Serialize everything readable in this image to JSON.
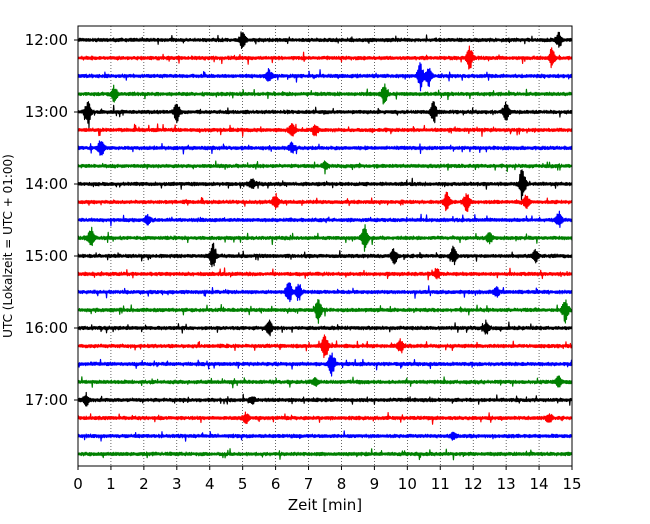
{
  "chart_data": {
    "type": "line",
    "title": "",
    "xlabel": "Zeit  [min]",
    "ylabel": "UTC (Lokalzeit = UTC + 01:00)",
    "xlim": [
      0,
      15
    ],
    "x_ticks": [
      0,
      1,
      2,
      3,
      4,
      5,
      6,
      7,
      8,
      9,
      10,
      11,
      12,
      13,
      14,
      15
    ],
    "x_tick_labels": [
      "0",
      "1",
      "2",
      "3",
      "4",
      "5",
      "6",
      "7",
      "8",
      "9",
      "10",
      "11",
      "12",
      "13",
      "14",
      "15"
    ],
    "y_tick_labels": [
      "12:00",
      "13:00",
      "14:00",
      "15:00",
      "16:00",
      "17:00"
    ],
    "trace_interval_min": 15,
    "trace_colors": [
      "#000000",
      "#ff0000",
      "#0000ff",
      "#008000"
    ],
    "vertical_grid": "dotted",
    "series": [
      {
        "start": "12:00",
        "color": "#000000",
        "events": [
          {
            "t": 5.0,
            "amp": 0.6
          },
          {
            "t": 14.6,
            "amp": 0.5
          }
        ]
      },
      {
        "start": "12:15",
        "color": "#ff0000",
        "events": [
          {
            "t": 11.9,
            "amp": 0.8
          },
          {
            "t": 14.4,
            "amp": 0.7
          }
        ]
      },
      {
        "start": "12:30",
        "color": "#0000ff",
        "events": [
          {
            "t": 5.8,
            "amp": 0.45
          },
          {
            "t": 10.4,
            "amp": 0.95
          },
          {
            "t": 10.65,
            "amp": 0.7
          }
        ]
      },
      {
        "start": "12:45",
        "color": "#008000",
        "events": [
          {
            "t": 1.1,
            "amp": 0.5
          },
          {
            "t": 9.3,
            "amp": 0.7
          }
        ]
      },
      {
        "start": "13:00",
        "color": "#000000",
        "events": [
          {
            "t": 0.3,
            "amp": 0.9
          },
          {
            "t": 3.0,
            "amp": 0.8
          },
          {
            "t": 10.8,
            "amp": 0.85
          },
          {
            "t": 13.0,
            "amp": 0.6
          }
        ]
      },
      {
        "start": "13:15",
        "color": "#ff0000",
        "events": [
          {
            "t": 6.5,
            "amp": 0.45
          },
          {
            "t": 7.2,
            "amp": 0.4
          }
        ]
      },
      {
        "start": "13:30",
        "color": "#0000ff",
        "events": [
          {
            "t": 0.7,
            "amp": 0.6
          },
          {
            "t": 6.5,
            "amp": 0.35
          }
        ]
      },
      {
        "start": "13:45",
        "color": "#008000",
        "events": [
          {
            "t": 7.5,
            "amp": 0.25
          }
        ]
      },
      {
        "start": "14:00",
        "color": "#000000",
        "events": [
          {
            "t": 5.3,
            "amp": 0.4
          },
          {
            "t": 13.5,
            "amp": 1.0
          }
        ]
      },
      {
        "start": "14:15",
        "color": "#ff0000",
        "events": [
          {
            "t": 6.0,
            "amp": 0.55
          },
          {
            "t": 11.2,
            "amp": 0.6
          },
          {
            "t": 11.8,
            "amp": 0.7
          },
          {
            "t": 13.6,
            "amp": 0.45
          }
        ]
      },
      {
        "start": "14:30",
        "color": "#0000ff",
        "events": [
          {
            "t": 2.1,
            "amp": 0.35
          },
          {
            "t": 14.6,
            "amp": 0.5
          }
        ]
      },
      {
        "start": "14:45",
        "color": "#008000",
        "events": [
          {
            "t": 0.4,
            "amp": 0.7
          },
          {
            "t": 8.7,
            "amp": 0.9
          },
          {
            "t": 12.5,
            "amp": 0.4
          }
        ]
      },
      {
        "start": "15:00",
        "color": "#000000",
        "events": [
          {
            "t": 4.1,
            "amp": 1.0
          },
          {
            "t": 9.6,
            "amp": 0.5
          },
          {
            "t": 11.4,
            "amp": 0.6
          },
          {
            "t": 13.9,
            "amp": 0.4
          }
        ]
      },
      {
        "start": "15:15",
        "color": "#ff0000",
        "events": [
          {
            "t": 10.9,
            "amp": 0.4
          }
        ]
      },
      {
        "start": "15:30",
        "color": "#0000ff",
        "events": [
          {
            "t": 6.4,
            "amp": 0.8
          },
          {
            "t": 6.7,
            "amp": 0.6
          },
          {
            "t": 12.7,
            "amp": 0.3
          }
        ]
      },
      {
        "start": "15:45",
        "color": "#008000",
        "events": [
          {
            "t": 7.3,
            "amp": 0.9
          },
          {
            "t": 14.8,
            "amp": 0.85
          }
        ]
      },
      {
        "start": "16:00",
        "color": "#000000",
        "events": [
          {
            "t": 5.8,
            "amp": 0.55
          },
          {
            "t": 12.4,
            "amp": 0.45
          }
        ]
      },
      {
        "start": "16:15",
        "color": "#ff0000",
        "events": [
          {
            "t": 7.5,
            "amp": 0.9
          },
          {
            "t": 9.8,
            "amp": 0.5
          }
        ]
      },
      {
        "start": "16:30",
        "color": "#0000ff",
        "events": [
          {
            "t": 7.7,
            "amp": 0.85
          }
        ]
      },
      {
        "start": "16:45",
        "color": "#008000",
        "events": [
          {
            "t": 7.2,
            "amp": 0.3
          },
          {
            "t": 14.6,
            "amp": 0.35
          }
        ]
      },
      {
        "start": "17:00",
        "color": "#000000",
        "events": [
          {
            "t": 0.25,
            "amp": 0.45
          },
          {
            "t": 5.3,
            "amp": 0.25
          }
        ]
      },
      {
        "start": "17:15",
        "color": "#ff0000",
        "events": [
          {
            "t": 5.1,
            "amp": 0.35
          },
          {
            "t": 14.3,
            "amp": 0.3
          }
        ]
      },
      {
        "start": "17:30",
        "color": "#0000ff",
        "events": [
          {
            "t": 11.4,
            "amp": 0.25
          }
        ]
      },
      {
        "start": "17:45",
        "color": "#008000",
        "events": []
      }
    ]
  }
}
